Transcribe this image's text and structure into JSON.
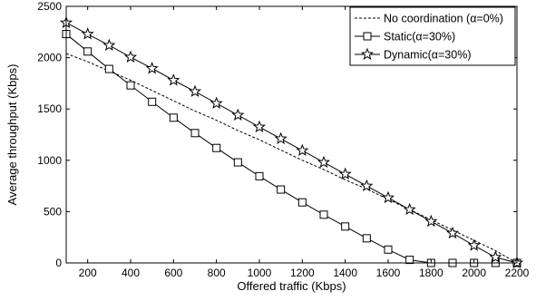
{
  "chart_data": {
    "type": "line",
    "xlabel": "Offered traffic (Kbps)",
    "ylabel": "Average throughput (Kbps)",
    "xlim": [
      100,
      2200
    ],
    "ylim": [
      0,
      2500
    ],
    "x_ticks": [
      200,
      400,
      600,
      800,
      1000,
      1200,
      1400,
      1600,
      1800,
      2000,
      2200
    ],
    "y_ticks": [
      0,
      500,
      1000,
      1500,
      2000,
      2500
    ],
    "grid": false,
    "legend_position": "top-right",
    "series": [
      {
        "name": "No coordination (α=0%)",
        "style": "dashed",
        "marker": "none",
        "x": [
          100,
          200,
          300,
          400,
          500,
          600,
          700,
          800,
          900,
          1000,
          1100,
          1200,
          1300,
          1400,
          1500,
          1600,
          1700,
          1800,
          1900,
          2000,
          2100,
          2200
        ],
        "values": [
          2040,
          1960,
          1870,
          1780,
          1680,
          1580,
          1480,
          1390,
          1290,
          1200,
          1100,
          1000,
          910,
          810,
          720,
          620,
          520,
          420,
          320,
          220,
          120,
          0
        ]
      },
      {
        "name": "Static(α=30%)",
        "style": "solid",
        "marker": "square",
        "x": [
          100,
          200,
          300,
          400,
          500,
          600,
          700,
          800,
          900,
          1000,
          1100,
          1200,
          1300,
          1400,
          1500,
          1600,
          1700,
          1800,
          1900,
          2000,
          2100,
          2200
        ],
        "values": [
          2230,
          2060,
          1890,
          1730,
          1570,
          1415,
          1265,
          1120,
          980,
          845,
          715,
          590,
          470,
          355,
          240,
          130,
          30,
          0,
          0,
          0,
          0,
          0
        ]
      },
      {
        "name": "Dynamic(α=30%)",
        "style": "solid",
        "marker": "star",
        "x": [
          100,
          200,
          300,
          400,
          500,
          600,
          700,
          800,
          900,
          1000,
          1100,
          1200,
          1300,
          1400,
          1500,
          1600,
          1700,
          1800,
          1900,
          2000,
          2100,
          2200
        ],
        "values": [
          2340,
          2230,
          2120,
          2005,
          1895,
          1780,
          1670,
          1555,
          1440,
          1325,
          1210,
          1095,
          980,
          865,
          750,
          635,
          520,
          405,
          290,
          170,
          55,
          0
        ]
      }
    ]
  }
}
